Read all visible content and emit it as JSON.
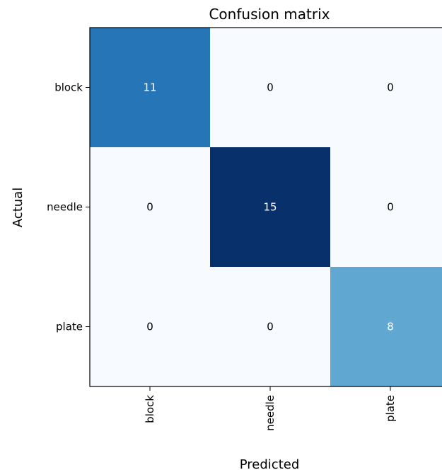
{
  "chart_data": {
    "type": "heatmap",
    "title": "Confusion matrix",
    "xlabel": "Predicted",
    "ylabel": "Actual",
    "x_categories": [
      "block",
      "needle",
      "plate"
    ],
    "y_categories": [
      "block",
      "needle",
      "plate"
    ],
    "values": [
      [
        11,
        0,
        0
      ],
      [
        0,
        15,
        0
      ],
      [
        0,
        0,
        8
      ]
    ],
    "colormap": "Blues",
    "color_range": [
      0,
      15
    ],
    "colors": {
      "low": "#f7fbff",
      "high": "#08306b"
    }
  }
}
